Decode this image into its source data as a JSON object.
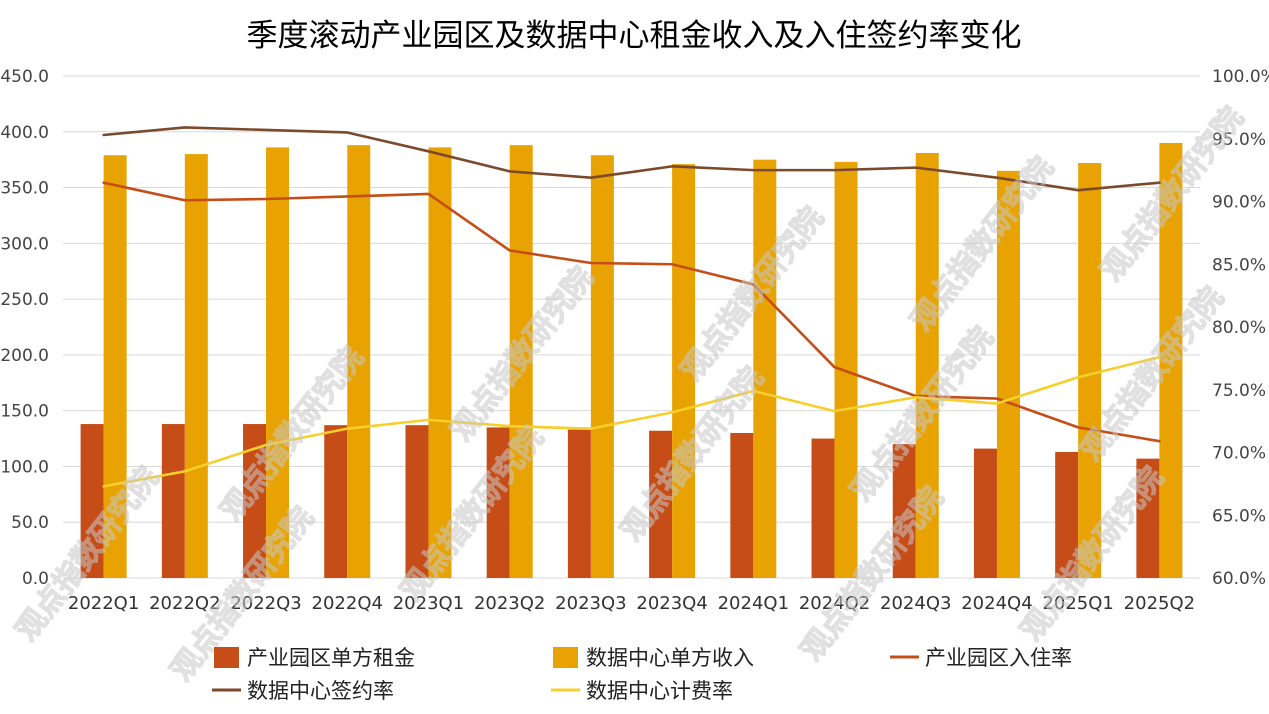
{
  "chart_data": {
    "type": "bar+line",
    "title": "季度滚动产业园区及数据中心租金收入及入住签约率变化",
    "categories": [
      "2022Q1",
      "2022Q2",
      "2022Q3",
      "2022Q4",
      "2023Q1",
      "2023Q2",
      "2023Q3",
      "2023Q4",
      "2024Q1",
      "2024Q2",
      "2024Q3",
      "2024Q4",
      "2025Q1",
      "2025Q2"
    ],
    "left_axis": {
      "min": 0,
      "max": 450,
      "step": 50,
      "tick_labels": [
        "0.0",
        "50.0",
        "100.0",
        "150.0",
        "200.0",
        "250.0",
        "300.0",
        "350.0",
        "400.0",
        "450.0"
      ]
    },
    "right_axis": {
      "min": 60,
      "max": 100,
      "step": 5,
      "tick_labels": [
        "60.0%",
        "65.0%",
        "70.0%",
        "75.0%",
        "80.0%",
        "85.0%",
        "90.0%",
        "95.0%",
        "100.0%"
      ]
    },
    "series": [
      {
        "name": "产业园区单方租金",
        "kind": "bar",
        "axis": "left",
        "color": "#c64d17",
        "values": [
          138,
          138,
          138,
          137,
          137,
          135,
          133,
          132,
          130,
          125,
          120,
          116,
          113,
          107
        ]
      },
      {
        "name": "数据中心单方收入",
        "kind": "bar",
        "axis": "left",
        "color": "#e8a302",
        "values": [
          379,
          380,
          386,
          388,
          386,
          388,
          379,
          371,
          375,
          373,
          381,
          365,
          372,
          390
        ]
      },
      {
        "name": "产业园区入住率",
        "kind": "line",
        "axis": "right",
        "color": "#c64d17",
        "values": [
          91.5,
          90.1,
          90.2,
          90.4,
          90.6,
          86.1,
          85.1,
          85.0,
          83.4,
          76.8,
          74.5,
          74.3,
          72.0,
          70.9
        ]
      },
      {
        "name": "数据中心签约率",
        "kind": "line",
        "axis": "right",
        "color": "#7b4a2d",
        "values": [
          95.3,
          95.9,
          95.7,
          95.5,
          94.0,
          92.4,
          91.9,
          92.8,
          92.5,
          92.5,
          92.7,
          91.9,
          90.9,
          91.5
        ]
      },
      {
        "name": "数据中心计费率",
        "kind": "line",
        "axis": "right",
        "color": "#f7cf2b",
        "values": [
          67.3,
          68.5,
          70.6,
          71.9,
          72.6,
          72.1,
          71.9,
          73.2,
          74.9,
          73.3,
          74.4,
          73.9,
          76.0,
          77.6
        ]
      }
    ],
    "legend_position": "bottom",
    "grid": true,
    "watermark": "观点指数研究院"
  }
}
